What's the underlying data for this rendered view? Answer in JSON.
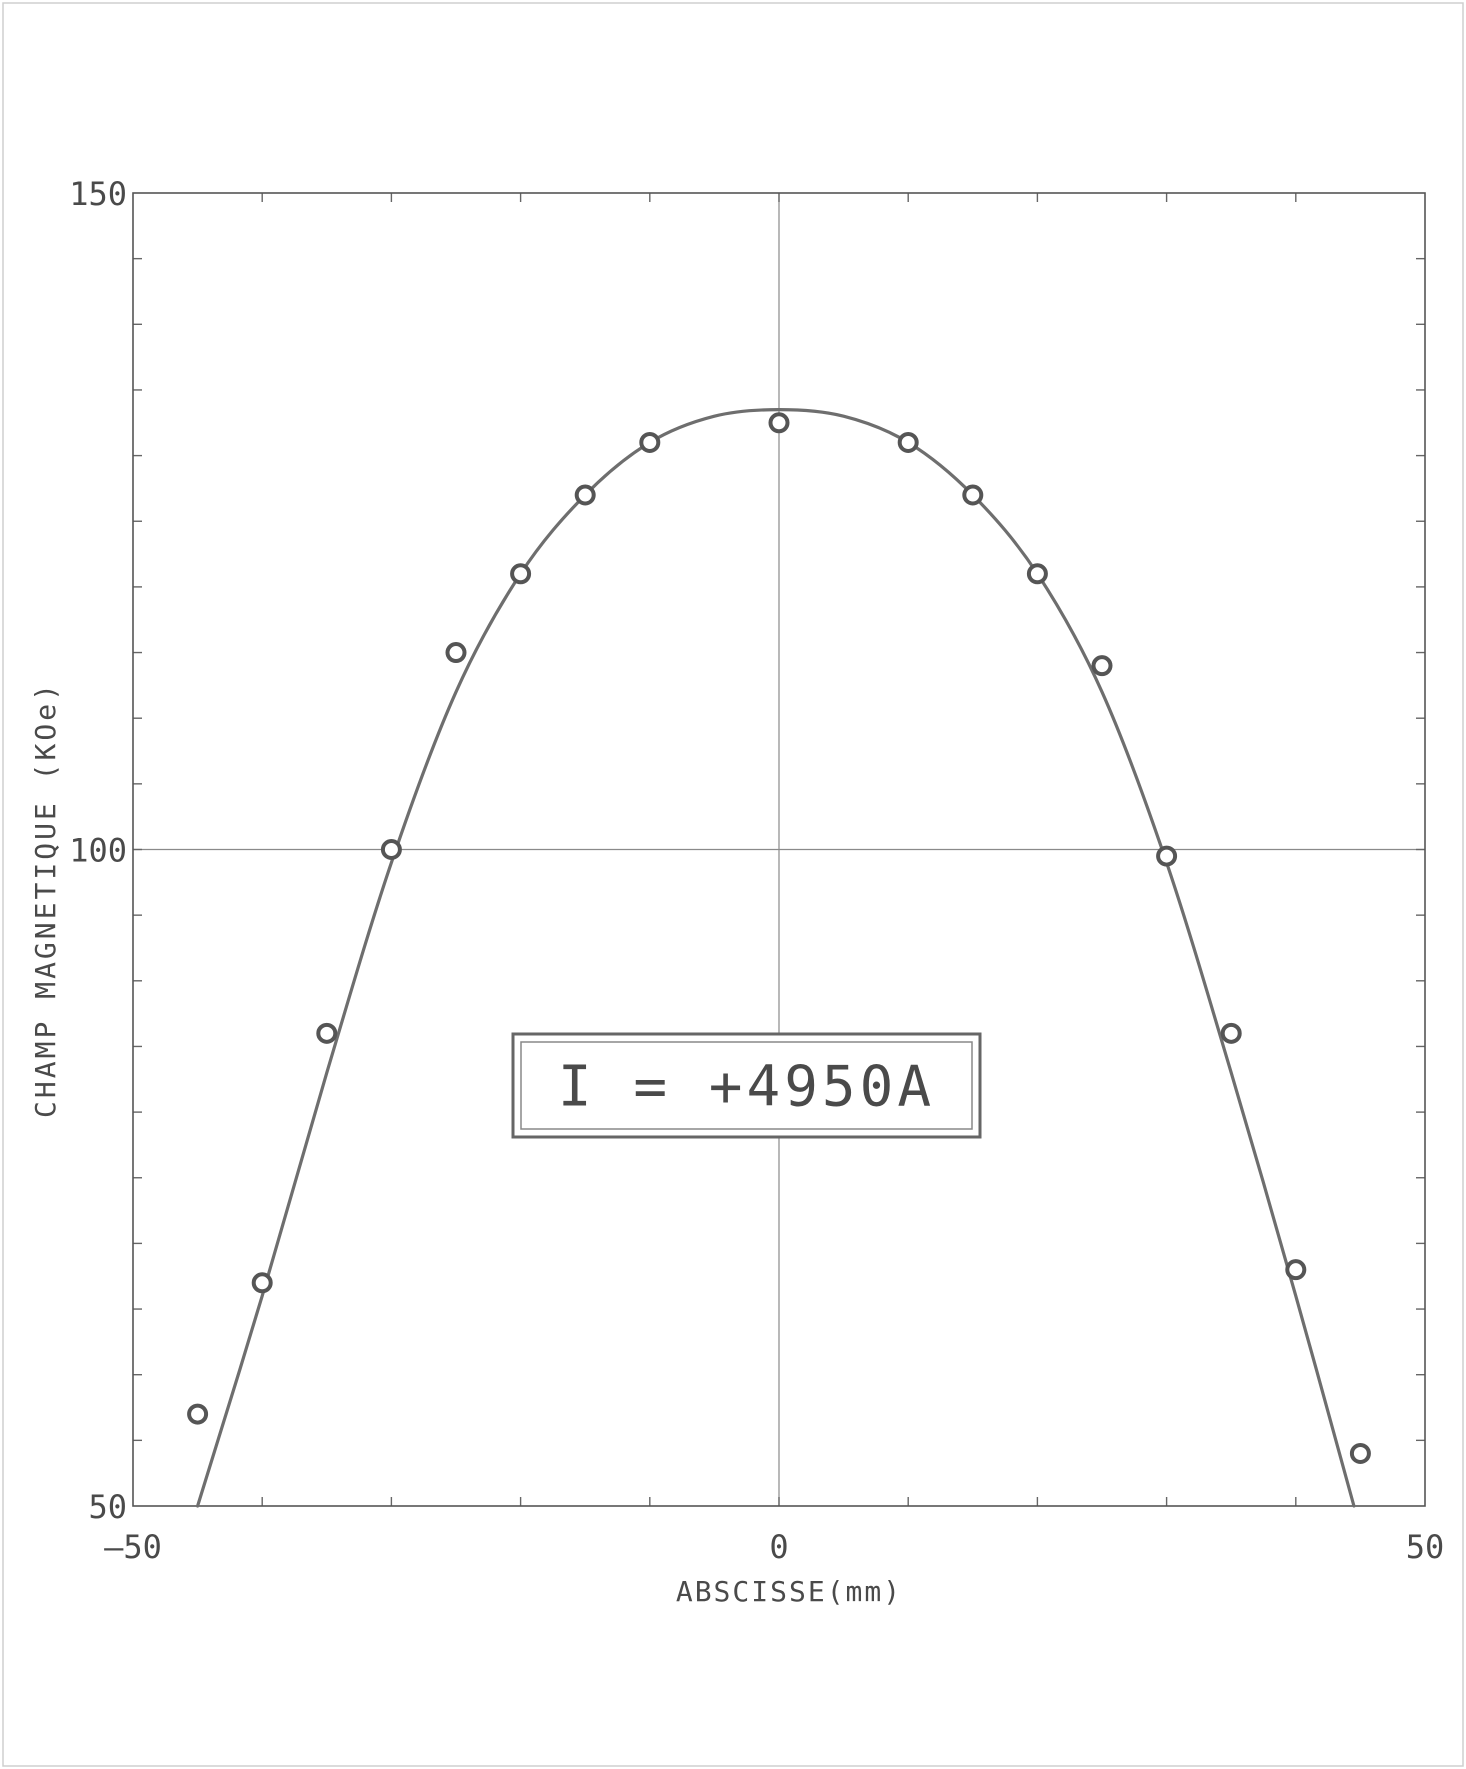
{
  "chart_data": {
    "type": "scatter",
    "xlabel": "ABSCISSE(mm)",
    "ylabel": "CHAMP MAGNETIQUE  (KOe)",
    "xlim": [
      -50,
      50
    ],
    "ylim": [
      50,
      150
    ],
    "x_ticks": [
      -50,
      0,
      50
    ],
    "y_ticks": [
      50,
      100,
      150
    ],
    "x_minor_step": 10,
    "y_minor_step": 5,
    "gridlines": {
      "x": [
        0
      ],
      "y": [
        100
      ]
    },
    "annotation": "I = +4950A",
    "series": [
      {
        "mark": "circle",
        "points": [
          {
            "x": -45,
            "y": 57
          },
          {
            "x": -40,
            "y": 67
          },
          {
            "x": -35,
            "y": 86
          },
          {
            "x": -30,
            "y": 100
          },
          {
            "x": -25,
            "y": 115
          },
          {
            "x": -20,
            "y": 121
          },
          {
            "x": -15,
            "y": 127
          },
          {
            "x": -10,
            "y": 131
          },
          {
            "x": 0,
            "y": 132.5
          },
          {
            "x": 10,
            "y": 131
          },
          {
            "x": 15,
            "y": 127
          },
          {
            "x": 20,
            "y": 121
          },
          {
            "x": 25,
            "y": 114
          },
          {
            "x": 30,
            "y": 99.5
          },
          {
            "x": 35,
            "y": 86
          },
          {
            "x": 40,
            "y": 68
          },
          {
            "x": 45,
            "y": 54
          }
        ]
      },
      {
        "mark": "curve",
        "points": [
          {
            "x": -45,
            "y": 50
          },
          {
            "x": -40,
            "y": 66
          },
          {
            "x": -35,
            "y": 83
          },
          {
            "x": -30,
            "y": 99
          },
          {
            "x": -25,
            "y": 112
          },
          {
            "x": -20,
            "y": 121
          },
          {
            "x": -15,
            "y": 127
          },
          {
            "x": -10,
            "y": 131
          },
          {
            "x": -5,
            "y": 133
          },
          {
            "x": 0,
            "y": 133.5
          },
          {
            "x": 5,
            "y": 133
          },
          {
            "x": 10,
            "y": 131
          },
          {
            "x": 15,
            "y": 127
          },
          {
            "x": 20,
            "y": 121
          },
          {
            "x": 25,
            "y": 112
          },
          {
            "x": 30,
            "y": 99
          },
          {
            "x": 35,
            "y": 83
          },
          {
            "x": 40,
            "y": 66
          },
          {
            "x": 44.5,
            "y": 50
          }
        ]
      }
    ]
  }
}
